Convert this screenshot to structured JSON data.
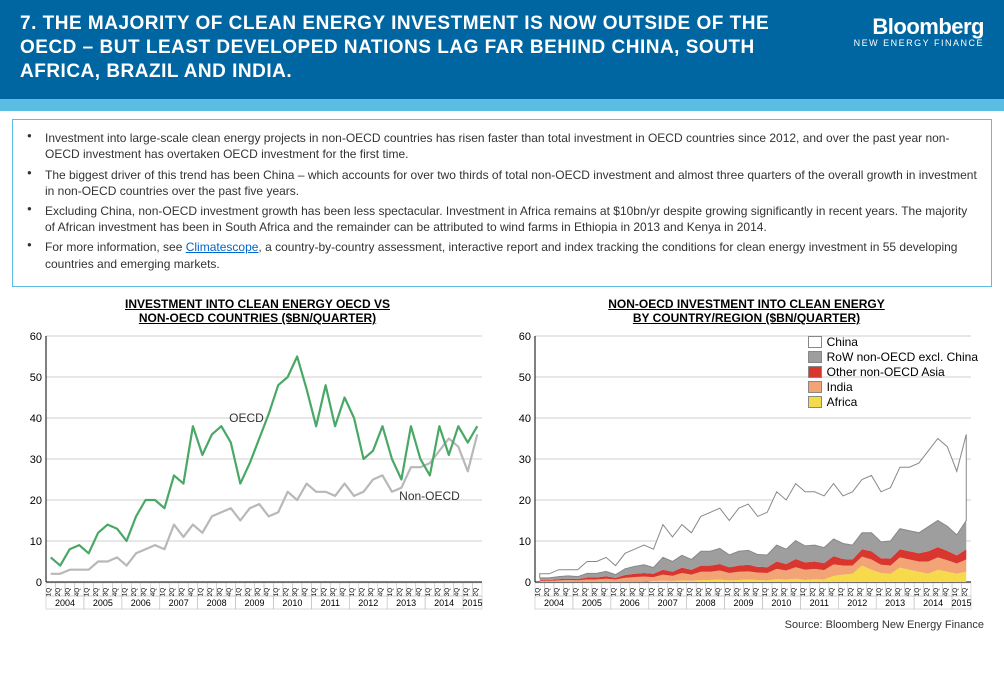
{
  "header": {
    "title": "7. THE MAJORITY OF CLEAN ENERGY INVESTMENT IS NOW OUTSIDE OF THE OECD – BUT LEAST DEVELOPED NATIONS LAG FAR BEHIND CHINA, SOUTH AFRICA, BRAZIL AND INDIA.",
    "logo_main": "Bloomberg",
    "logo_sub": "NEW ENERGY FINANCE"
  },
  "colors": {
    "header_bg": "#0066a1",
    "accent_bar": "#5bbce4",
    "oecd_line": "#4aa866",
    "nonoecd_line": "#b8b8b8",
    "grid": "#bfbfbf",
    "axis": "#000000",
    "china_fill": "#ffffff",
    "china_stroke": "#888888",
    "row_fill": "#9e9e9e",
    "other_asia_fill": "#d9362f",
    "india_fill": "#f2a477",
    "africa_fill": "#f7d94c"
  },
  "bullets": [
    "Investment into large-scale clean energy projects in non-OECD countries has risen faster than total investment in OECD countries since 2012, and over the past year non-OECD investment has overtaken OECD investment for the first time.",
    "The biggest driver of this trend has been China – which accounts for over two thirds of total non-OECD investment and almost three quarters of the overall growth in investment in non-OECD countries over the past five years.",
    "Excluding China, non-OECD investment growth has been less spectacular. Investment in Africa remains at $10bn/yr despite growing significantly in recent years. The majority of African investment has been in South Africa and the remainder can be attributed to wind farms in Ethiopia in 2013 and Kenya in 2014.",
    "For more information, see <a href='#' data-name='climatescope-link' data-interactable='true'>Climatescope</a>,  a country-by-country assessment, interactive report and index tracking the conditions for clean energy investment in 55 developing countries and emerging markets."
  ],
  "chart_left": {
    "title1": "INVESTMENT INTO CLEAN ENERGY OECD VS",
    "title2": "NON-OECD COUNTRIES ($BN/QUARTER)",
    "ylim": [
      0,
      60
    ],
    "ytick_step": 10,
    "x_years": [
      "2004",
      "2005",
      "2006",
      "2007",
      "2008",
      "2009",
      "2010",
      "2011",
      "2012",
      "2013",
      "2014",
      "2015"
    ],
    "quarters_per_year_last": 2,
    "oecd_label": "OECD",
    "nonoecd_label": "Non-OECD",
    "series": {
      "oecd": [
        6,
        4,
        8,
        9,
        7,
        12,
        14,
        13,
        10,
        16,
        20,
        20,
        18,
        26,
        24,
        38,
        31,
        36,
        38,
        34,
        24,
        29,
        35,
        41,
        48,
        50,
        55,
        47,
        38,
        48,
        38,
        45,
        40,
        30,
        32,
        38,
        30,
        25,
        38,
        30,
        26,
        38,
        31,
        38,
        34,
        38
      ],
      "nonoecd": [
        2,
        2,
        3,
        3,
        3,
        5,
        5,
        6,
        4,
        7,
        8,
        9,
        8,
        14,
        11,
        14,
        12,
        16,
        17,
        18,
        15,
        18,
        19,
        16,
        17,
        22,
        20,
        24,
        22,
        22,
        21,
        24,
        21,
        22,
        25,
        26,
        22,
        23,
        28,
        28,
        29,
        32,
        35,
        33,
        27,
        36
      ]
    },
    "line_width": 2.2
  },
  "chart_right": {
    "title1": "NON-OECD INVESTMENT INTO CLEAN ENERGY",
    "title2": "BY COUNTRY/REGION ($BN/QUARTER)",
    "ylim": [
      0,
      60
    ],
    "ytick_step": 10,
    "x_years": [
      "2004",
      "2005",
      "2006",
      "2007",
      "2008",
      "2009",
      "2010",
      "2011",
      "2012",
      "2013",
      "2014",
      "2015"
    ],
    "legend": [
      {
        "label": "China",
        "color_key": "china_fill",
        "stroke_key": "china_stroke"
      },
      {
        "label": "RoW non-OECD excl. China",
        "color_key": "row_fill"
      },
      {
        "label": "Other non-OECD Asia",
        "color_key": "other_asia_fill"
      },
      {
        "label": "India",
        "color_key": "india_fill"
      },
      {
        "label": "Africa",
        "color_key": "africa_fill"
      }
    ],
    "stack_order": [
      "africa",
      "india",
      "other_asia",
      "row",
      "china"
    ],
    "series": {
      "africa": [
        0,
        0,
        0,
        0,
        0,
        0,
        0,
        0,
        0,
        0,
        0,
        0,
        0.2,
        0.3,
        0.2,
        0.4,
        0.3,
        0.5,
        0.5,
        0.6,
        0.4,
        0.5,
        0.6,
        0.5,
        0.4,
        0.7,
        0.6,
        0.8,
        0.5,
        0.7,
        0.6,
        1.5,
        1.8,
        2.0,
        4.0,
        3.0,
        2.2,
        2.0,
        3.5,
        3.0,
        2.5,
        2.0,
        3.0,
        2.5,
        2.0,
        2.5
      ],
      "india": [
        0.3,
        0.3,
        0.4,
        0.5,
        0.4,
        0.6,
        0.6,
        0.8,
        0.6,
        1.0,
        1.2,
        1.3,
        1.0,
        1.5,
        1.3,
        1.8,
        1.5,
        2.0,
        2.0,
        2.2,
        1.8,
        2.0,
        2.0,
        1.8,
        1.8,
        2.5,
        2.2,
        2.8,
        2.5,
        2.5,
        2.3,
        2.8,
        2.2,
        2.0,
        2.2,
        2.5,
        2.0,
        2.0,
        2.5,
        2.5,
        2.5,
        3.0,
        3.0,
        2.8,
        2.5,
        3.0
      ],
      "other_asia": [
        0.2,
        0.2,
        0.3,
        0.3,
        0.3,
        0.5,
        0.5,
        0.6,
        0.4,
        0.7,
        0.8,
        0.9,
        0.8,
        1.2,
        1.0,
        1.3,
        1.2,
        1.5,
        1.5,
        1.6,
        1.4,
        1.5,
        1.6,
        1.4,
        1.4,
        1.8,
        1.6,
        2.0,
        1.8,
        1.8,
        1.7,
        2.0,
        1.6,
        1.5,
        1.8,
        2.0,
        1.6,
        1.7,
        2.0,
        2.0,
        2.0,
        2.5,
        2.5,
        2.3,
        2.0,
        2.5
      ],
      "row": [
        0.5,
        0.5,
        0.6,
        0.7,
        0.6,
        1.0,
        1.0,
        1.2,
        0.8,
        1.5,
        1.8,
        2.0,
        1.5,
        3.0,
        2.5,
        3.0,
        2.5,
        3.5,
        3.5,
        3.8,
        3.0,
        3.5,
        3.5,
        3.0,
        3.0,
        4.0,
        3.6,
        4.5,
        4.0,
        4.0,
        3.8,
        4.2,
        3.8,
        3.5,
        4.0,
        4.5,
        4.0,
        4.3,
        5.0,
        5.0,
        5.0,
        6.0,
        6.5,
        6.0,
        5.0,
        7.0
      ],
      "china": [
        1.0,
        1.0,
        1.7,
        1.5,
        1.7,
        2.9,
        2.9,
        3.4,
        2.2,
        3.8,
        4.2,
        4.8,
        4.5,
        8.0,
        6.0,
        7.5,
        6.5,
        8.5,
        9.5,
        9.8,
        8.4,
        10.5,
        11.3,
        9.3,
        10.4,
        13.0,
        12.0,
        13.9,
        13.2,
        13.0,
        12.6,
        13.5,
        11.6,
        13.0,
        13.0,
        14.0,
        12.2,
        13.0,
        15.0,
        15.5,
        17.0,
        18.5,
        20.0,
        19.4,
        15.5,
        21.0
      ]
    },
    "line_width": 1.2
  },
  "x_quarter_labels": [
    "1Q",
    "2Q",
    "3Q",
    "4Q"
  ],
  "source": "Source: Bloomberg New Energy Finance"
}
